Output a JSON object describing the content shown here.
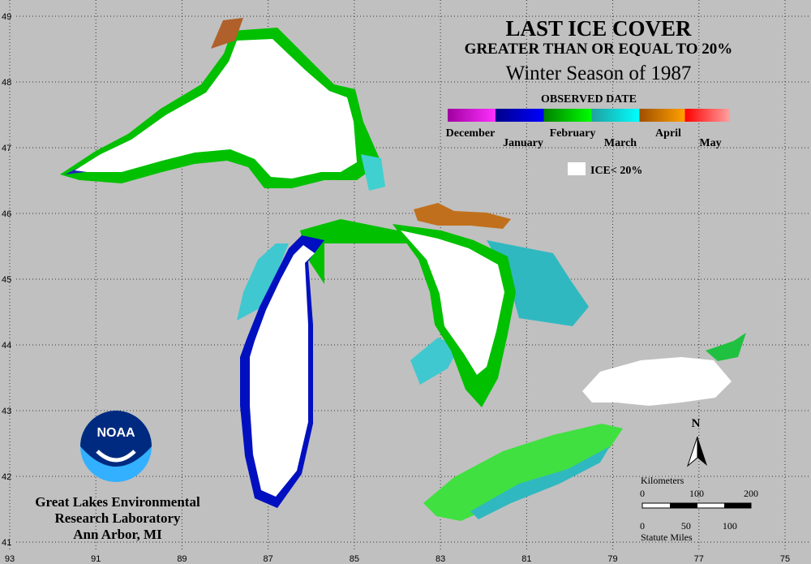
{
  "title": "LAST ICE COVER",
  "subtitle": "GREATER THAN OR EQUAL TO 20%",
  "season": "Winter Season of 1987",
  "legend": {
    "title": "OBSERVED DATE",
    "months": [
      "December",
      "January",
      "February",
      "March",
      "April",
      "May"
    ],
    "low_ice": "ICE< 20%"
  },
  "latitudes": [
    49,
    48,
    47,
    46,
    45,
    44,
    43,
    42,
    41
  ],
  "longitudes": [
    93,
    91,
    89,
    87,
    85,
    83,
    81,
    79,
    77,
    75
  ],
  "logo": "NOAA",
  "lab": [
    "Great Lakes Environmental",
    "Research Laboratory",
    "Ann Arbor, MI"
  ],
  "north": "N",
  "scale": {
    "km_label": "Kilometers",
    "km": [
      0,
      100,
      200
    ],
    "mi_label": "Statute Miles",
    "mi": [
      0,
      50,
      100
    ]
  }
}
